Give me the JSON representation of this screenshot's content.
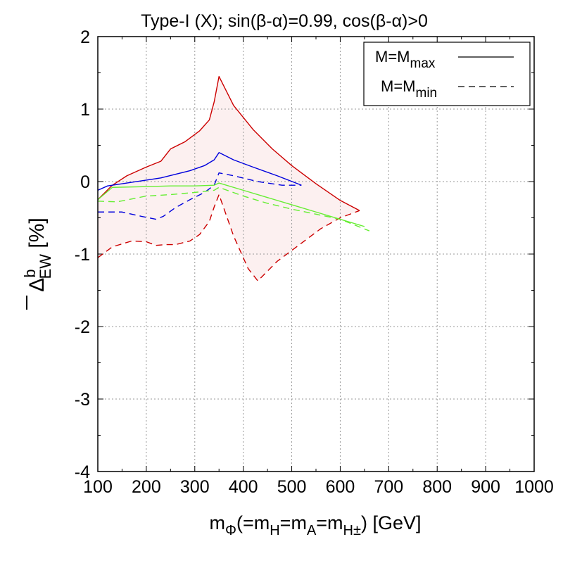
{
  "chart_data": {
    "type": "line",
    "title": "Type-I (X); sin(β-α)=0.99, cos(β-α)>0",
    "xlabel": {
      "parts": [
        {
          "text": "m",
          "sub": false
        },
        {
          "text": "Φ",
          "sub": true
        },
        {
          "text": "(=m",
          "sub": false
        },
        {
          "text": "H",
          "sub": true
        },
        {
          "text": "=m",
          "sub": false
        },
        {
          "text": "A",
          "sub": true
        },
        {
          "text": "=m",
          "sub": false
        },
        {
          "text": "H±",
          "sub": true
        },
        {
          "text": ") [GeV]",
          "sub": false
        }
      ]
    },
    "ylabel": {
      "symbol": "Δ",
      "superscript": "b",
      "subscript": "EW",
      "unit": "[%]"
    },
    "xlim": [
      100,
      1000
    ],
    "ylim": [
      -4,
      2
    ],
    "xticks": [
      100,
      200,
      300,
      400,
      500,
      600,
      700,
      800,
      900,
      1000
    ],
    "yticks": [
      -4,
      -3,
      -2,
      -1,
      0,
      1,
      2
    ],
    "grid": true,
    "legend_position": "top-right",
    "legend": [
      {
        "base": "M=M",
        "sub": "max",
        "style": "solid"
      },
      {
        "base": "M=M",
        "sub": "min",
        "style": "dashed"
      }
    ],
    "colors": {
      "red": "#cc0000",
      "blue": "#0000dd",
      "green": "#66ee33",
      "band": "#fcf0f0"
    },
    "series": [
      {
        "color": "red",
        "style": "solid",
        "x": [
          100,
          130,
          160,
          200,
          230,
          250,
          280,
          310,
          330,
          340,
          350,
          380,
          420,
          460,
          500,
          550,
          600,
          640
        ],
        "y": [
          -0.25,
          -0.05,
          0.08,
          0.2,
          0.28,
          0.45,
          0.55,
          0.7,
          0.85,
          1.1,
          1.45,
          1.05,
          0.72,
          0.45,
          0.22,
          -0.03,
          -0.26,
          -0.4
        ]
      },
      {
        "color": "red",
        "style": "dashed",
        "x": [
          100,
          130,
          170,
          200,
          220,
          240,
          260,
          290,
          310,
          330,
          340,
          350,
          380,
          410,
          430,
          470,
          520,
          560,
          600,
          640
        ],
        "y": [
          -1.05,
          -0.9,
          -0.82,
          -0.83,
          -0.88,
          -0.87,
          -0.87,
          -0.82,
          -0.73,
          -0.55,
          -0.35,
          -0.18,
          -0.75,
          -1.2,
          -1.37,
          -1.1,
          -0.85,
          -0.65,
          -0.5,
          -0.4
        ]
      },
      {
        "color": "blue",
        "style": "solid",
        "x": [
          100,
          120,
          160,
          200,
          230,
          260,
          290,
          320,
          340,
          350,
          380,
          420,
          470,
          520
        ],
        "y": [
          -0.12,
          -0.06,
          -0.02,
          0.02,
          0.05,
          0.1,
          0.15,
          0.22,
          0.3,
          0.4,
          0.3,
          0.2,
          0.08,
          -0.05
        ]
      },
      {
        "color": "blue",
        "style": "dashed",
        "x": [
          100,
          150,
          190,
          220,
          235,
          260,
          290,
          320,
          340,
          350,
          380,
          430,
          480,
          520
        ],
        "y": [
          -0.42,
          -0.42,
          -0.48,
          -0.52,
          -0.48,
          -0.36,
          -0.25,
          -0.15,
          -0.05,
          0.12,
          0.08,
          0.0,
          -0.05,
          -0.05
        ]
      },
      {
        "color": "green",
        "style": "solid",
        "x": [
          100,
          130,
          200,
          250,
          300,
          340,
          350,
          400,
          450,
          500,
          550,
          600,
          650
        ],
        "y": [
          -0.25,
          -0.08,
          -0.07,
          -0.06,
          -0.06,
          -0.05,
          -0.02,
          -0.12,
          -0.22,
          -0.32,
          -0.42,
          -0.52,
          -0.62
        ]
      },
      {
        "color": "green",
        "style": "dashed",
        "x": [
          100,
          140,
          200,
          250,
          300,
          340,
          350,
          400,
          450,
          500,
          550,
          600,
          660
        ],
        "y": [
          -0.27,
          -0.28,
          -0.2,
          -0.18,
          -0.15,
          -0.12,
          -0.08,
          -0.2,
          -0.3,
          -0.38,
          -0.45,
          -0.52,
          -0.68
        ]
      }
    ]
  }
}
